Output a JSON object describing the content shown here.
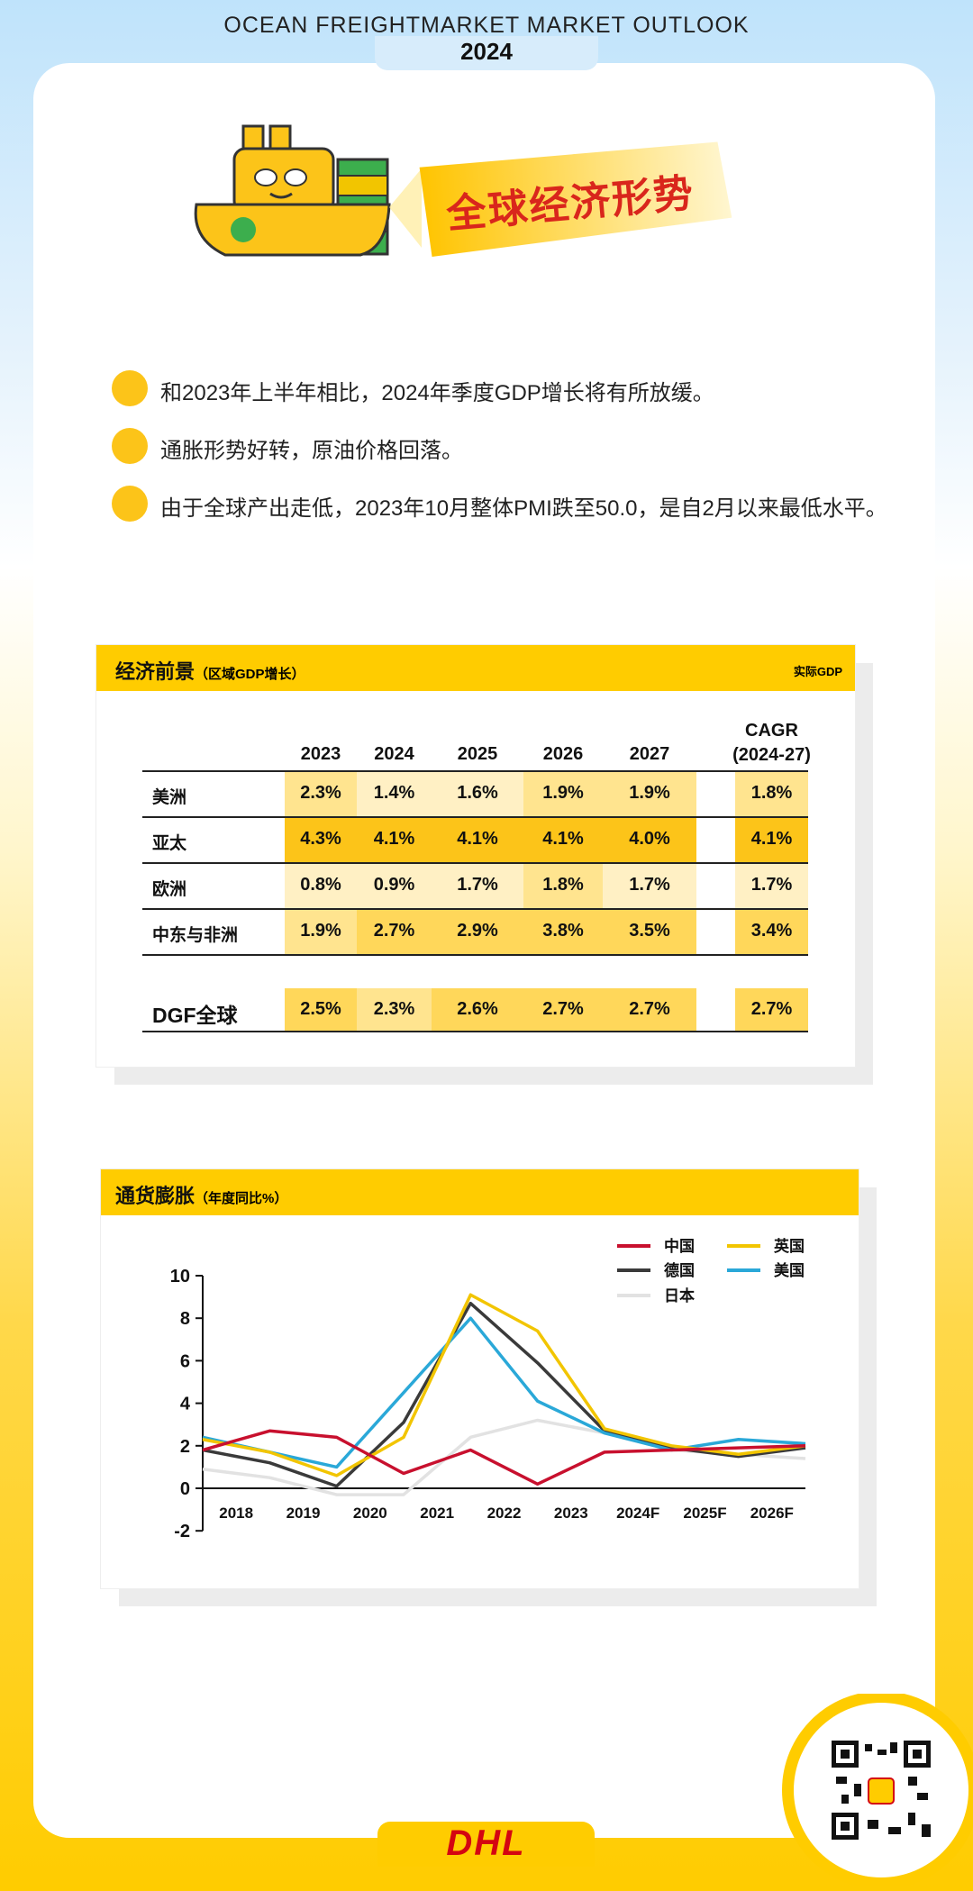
{
  "header": {
    "title": "OCEAN FREIGHTMARKET MARKET OUTLOOK",
    "year": "2024"
  },
  "section": {
    "title": "全球经济形势"
  },
  "bullets": [
    "和2023年上半年相比，2024年季度GDP增长将有所放缓。",
    "通胀形势好转，原油价格回落。",
    "由于全球产出走低，2023年10月整体PMI跌至50.0，是自2月以来最低水平。"
  ],
  "table": {
    "title": "经济前景",
    "subtitle": "（区域GDP增长）",
    "note": "实际GDP",
    "columns": [
      "2023",
      "2024",
      "2025",
      "2026",
      "2027",
      "CAGR (2024-27)"
    ],
    "rows": [
      [
        "美洲",
        "2.3%",
        "1.4%",
        "1.6%",
        "1.9%",
        "1.9%",
        "1.8%"
      ],
      [
        "亚太",
        "4.3%",
        "4.1%",
        "4.1%",
        "4.1%",
        "4.0%",
        "4.1%"
      ],
      [
        "欧洲",
        "0.8%",
        "0.9%",
        "1.7%",
        "1.8%",
        "1.7%",
        "1.7%"
      ],
      [
        "中东与非洲",
        "1.9%",
        "2.7%",
        "2.9%",
        "3.8%",
        "3.5%",
        "3.4%"
      ]
    ],
    "total": [
      "DGF全球",
      "2.5%",
      "2.3%",
      "2.6%",
      "2.7%",
      "2.7%",
      "2.7%"
    ]
  },
  "chart_data": {
    "type": "line",
    "title": "通货膨胀",
    "subtitle": "（年度同比%）",
    "x": [
      2017.5,
      2018.5,
      2019.5,
      2020.5,
      2021.5,
      2022.5,
      2023.5,
      2024.5,
      2025.5,
      2026.5
    ],
    "xlim": [
      2017.5,
      2026.5
    ],
    "xticks": [
      2018,
      2019,
      2020,
      2021,
      2022,
      2023,
      {
        "value": 2024,
        "label": "2024F"
      },
      {
        "value": 2025,
        "label": "2025F"
      },
      {
        "value": 2026,
        "label": "2026F"
      }
    ],
    "ylim": [
      -2,
      10
    ],
    "yticks": [
      -2,
      0,
      2,
      4,
      6,
      8,
      10
    ],
    "series": [
      {
        "name": "中国",
        "color": "#c8102e",
        "values": [
          1.8,
          2.7,
          2.4,
          0.7,
          1.8,
          0.2,
          1.7,
          1.8,
          1.9,
          2.0
        ]
      },
      {
        "name": "英国",
        "color": "#f2c500",
        "values": [
          2.3,
          1.7,
          0.6,
          2.4,
          9.1,
          7.4,
          2.8,
          2.0,
          1.6,
          2.0
        ]
      },
      {
        "name": "德国",
        "color": "#3a3a3a",
        "values": [
          1.8,
          1.2,
          0.1,
          3.1,
          8.7,
          5.9,
          2.7,
          1.9,
          1.5,
          1.9
        ]
      },
      {
        "name": "美国",
        "color": "#2aa8d8",
        "values": [
          2.4,
          1.7,
          1.0,
          4.5,
          8.0,
          4.1,
          2.6,
          1.8,
          2.3,
          2.1
        ]
      },
      {
        "name": "日本",
        "color": "#e2e2e2",
        "values": [
          0.9,
          0.5,
          -0.3,
          -0.3,
          2.4,
          3.2,
          2.6,
          1.8,
          1.6,
          1.4
        ]
      }
    ]
  },
  "footer": {
    "logo": "DHL"
  }
}
